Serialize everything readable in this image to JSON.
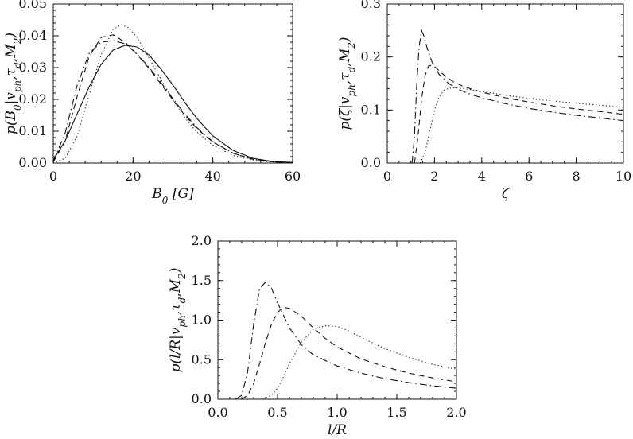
{
  "chart_data": [
    {
      "type": "line",
      "xlabel": "B_0 [G]",
      "ylabel": "p(B_0|v_ph,τ_d,M_2)",
      "xlim": [
        0,
        60
      ],
      "ylim": [
        0,
        0.05
      ],
      "xticks": [
        0,
        20,
        40,
        60
      ],
      "yticks": [
        0.0,
        0.01,
        0.02,
        0.03,
        0.04,
        0.05
      ],
      "xtick_labels": [
        "0",
        "20",
        "40",
        "60"
      ],
      "ytick_labels": [
        "0.00",
        "0.01",
        "0.02",
        "0.03",
        "0.04",
        "0.05"
      ],
      "series": [
        {
          "style": "solid",
          "x": [
            0,
            3,
            6,
            9,
            12,
            15,
            18,
            21,
            24,
            27,
            30,
            33,
            36,
            40,
            45,
            50,
            55,
            60
          ],
          "y": [
            0.001,
            0.007,
            0.0155,
            0.024,
            0.031,
            0.0355,
            0.037,
            0.0365,
            0.034,
            0.0295,
            0.0245,
            0.019,
            0.014,
            0.0085,
            0.004,
            0.0015,
            0.0005,
            0.0002
          ]
        },
        {
          "style": "dashed",
          "x": [
            0,
            3,
            6,
            9,
            12,
            15,
            18,
            21,
            24,
            27,
            30,
            33,
            36,
            40,
            45,
            50,
            55,
            60
          ],
          "y": [
            0.0003,
            0.007,
            0.021,
            0.0335,
            0.0395,
            0.0403,
            0.038,
            0.0342,
            0.0297,
            0.0248,
            0.0198,
            0.015,
            0.0108,
            0.0066,
            0.0031,
            0.0012,
            0.0004,
            0.0001
          ]
        },
        {
          "style": "dotted",
          "x": [
            0,
            3,
            6,
            9,
            12,
            15,
            17,
            19,
            21,
            24,
            27,
            30,
            33,
            36,
            40,
            45,
            50,
            55,
            60
          ],
          "y": [
            0.0,
            0.0015,
            0.0085,
            0.0215,
            0.034,
            0.042,
            0.0435,
            0.0425,
            0.0395,
            0.033,
            0.0263,
            0.0198,
            0.0142,
            0.0097,
            0.0056,
            0.0024,
            0.0009,
            0.0003,
            0.0001
          ]
        },
        {
          "style": "dashdot",
          "x": [
            0,
            3,
            6,
            9,
            12,
            15,
            18,
            21,
            24,
            27,
            30,
            33,
            36,
            40,
            45,
            50,
            55,
            60
          ],
          "y": [
            0.0005,
            0.0095,
            0.0245,
            0.0345,
            0.038,
            0.0385,
            0.0375,
            0.0343,
            0.0301,
            0.0253,
            0.0202,
            0.0154,
            0.0111,
            0.0067,
            0.0031,
            0.0012,
            0.0004,
            0.0001
          ]
        }
      ]
    },
    {
      "type": "line",
      "xlabel": "ζ",
      "ylabel": "p(ζ|v_ph,τ_d,M_2)",
      "xlim": [
        0,
        10
      ],
      "ylim": [
        0,
        0.3
      ],
      "xticks": [
        0,
        2,
        4,
        6,
        8,
        10
      ],
      "yticks": [
        0.0,
        0.1,
        0.2,
        0.3
      ],
      "xtick_labels": [
        "0",
        "2",
        "4",
        "6",
        "8",
        "10"
      ],
      "ytick_labels": [
        "0.0",
        "0.1",
        "0.2",
        "0.3"
      ],
      "series": [
        {
          "style": "dashdot",
          "x": [
            1.05,
            1.15,
            1.25,
            1.35,
            1.45,
            1.55,
            1.7,
            1.9,
            2.2,
            2.6,
            3,
            3.5,
            4,
            5,
            6,
            7,
            8,
            9,
            10
          ],
          "y": [
            0,
            0.05,
            0.15,
            0.22,
            0.25,
            0.24,
            0.215,
            0.19,
            0.167,
            0.15,
            0.139,
            0.13,
            0.123,
            0.112,
            0.103,
            0.096,
            0.09,
            0.085,
            0.08
          ]
        },
        {
          "style": "dashed",
          "x": [
            1.15,
            1.3,
            1.45,
            1.6,
            1.75,
            1.9,
            2.1,
            2.4,
            2.8,
            3.2,
            3.6,
            4,
            5,
            6,
            7,
            8,
            9,
            10
          ],
          "y": [
            0,
            0.05,
            0.12,
            0.165,
            0.183,
            0.185,
            0.178,
            0.166,
            0.153,
            0.145,
            0.139,
            0.134,
            0.123,
            0.115,
            0.108,
            0.102,
            0.097,
            0.092
          ]
        },
        {
          "style": "dotted",
          "x": [
            1.4,
            1.6,
            1.8,
            2,
            2.2,
            2.4,
            2.6,
            2.9,
            3.3,
            4,
            5,
            6,
            7,
            8,
            9,
            10
          ],
          "y": [
            0,
            0.02,
            0.06,
            0.1,
            0.125,
            0.137,
            0.141,
            0.142,
            0.14,
            0.135,
            0.128,
            0.122,
            0.117,
            0.113,
            0.109,
            0.105
          ]
        }
      ]
    },
    {
      "type": "line",
      "xlabel": "l/R",
      "ylabel": "p(l/R|v_ph,τ_d,M_2)",
      "xlim": [
        0,
        2
      ],
      "ylim": [
        0,
        2
      ],
      "xticks": [
        0.0,
        0.5,
        1.0,
        1.5,
        2.0
      ],
      "yticks": [
        0.0,
        0.5,
        1.0,
        1.5,
        2.0
      ],
      "xtick_labels": [
        "0.0",
        "0.5",
        "1.0",
        "1.5",
        "2.0"
      ],
      "ytick_labels": [
        "0.0",
        "0.5",
        "1.0",
        "1.5",
        "2.0"
      ],
      "series": [
        {
          "style": "dashdot",
          "x": [
            0.15,
            0.2,
            0.25,
            0.3,
            0.35,
            0.4,
            0.45,
            0.5,
            0.6,
            0.7,
            0.8,
            1,
            1.2,
            1.4,
            1.6,
            1.8,
            2
          ],
          "y": [
            0,
            0.05,
            0.35,
            0.95,
            1.4,
            1.48,
            1.4,
            1.22,
            0.9,
            0.69,
            0.56,
            0.42,
            0.33,
            0.26,
            0.21,
            0.17,
            0.14
          ]
        },
        {
          "style": "dashed",
          "x": [
            0.2,
            0.25,
            0.3,
            0.35,
            0.4,
            0.45,
            0.5,
            0.55,
            0.6,
            0.7,
            0.8,
            0.9,
            1,
            1.2,
            1.4,
            1.6,
            1.8,
            2
          ],
          "y": [
            0,
            0.05,
            0.2,
            0.45,
            0.72,
            0.95,
            1.1,
            1.16,
            1.15,
            1.05,
            0.9,
            0.77,
            0.66,
            0.51,
            0.41,
            0.33,
            0.27,
            0.22
          ]
        },
        {
          "style": "dotted",
          "x": [
            0.38,
            0.45,
            0.5,
            0.55,
            0.6,
            0.7,
            0.8,
            0.9,
            1,
            1.1,
            1.2,
            1.4,
            1.6,
            1.8,
            2
          ],
          "y": [
            0,
            0.05,
            0.14,
            0.28,
            0.45,
            0.72,
            0.88,
            0.93,
            0.92,
            0.86,
            0.78,
            0.64,
            0.53,
            0.44,
            0.38
          ]
        }
      ]
    }
  ]
}
